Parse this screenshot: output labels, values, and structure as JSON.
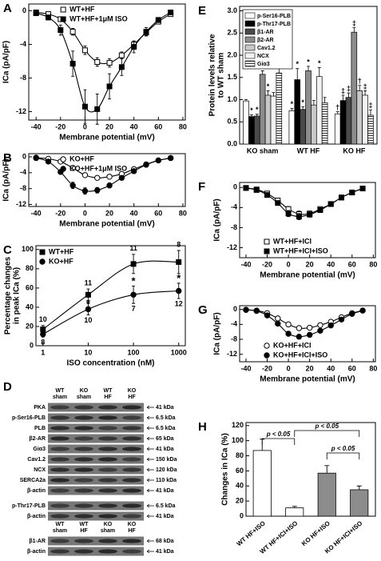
{
  "chart_data": [
    {
      "panel": "A",
      "type": "line",
      "xlabel": "Membrane potential (mV)",
      "ylabel": "ICa (pA/pF)",
      "x": [
        -40,
        -30,
        -20,
        -10,
        0,
        10,
        20,
        30,
        40,
        50,
        60,
        70
      ],
      "xlim": [
        -46,
        82
      ],
      "xticks": [
        -40,
        -20,
        0,
        20,
        40,
        60,
        80
      ],
      "ylim": [
        -13,
        0.8
      ],
      "yticks": [
        0,
        -4,
        -8,
        -12
      ],
      "legend": "upper center",
      "series": [
        {
          "name": "WT+HF",
          "marker": "square",
          "filled": false,
          "color": "#000000",
          "values": [
            -0.2,
            -0.4,
            -1.0,
            -2.5,
            -4.7,
            -6.1,
            -6.2,
            -5.3,
            -4.0,
            -2.6,
            -1.3,
            -0.4
          ],
          "errors": [
            0.1,
            0.1,
            0.2,
            0.4,
            0.5,
            0.5,
            0.5,
            0.4,
            0.4,
            0.3,
            0.2,
            0.1
          ]
        },
        {
          "name": "WT+HF+1μM ISO",
          "marker": "square",
          "filled": true,
          "color": "#000000",
          "values": [
            -0.3,
            -0.8,
            -2.3,
            -6.3,
            -11.4,
            -11.7,
            -9.0,
            -6.7,
            -4.3,
            -2.5,
            -1.1,
            -0.2
          ],
          "errors": [
            0.1,
            0.3,
            0.6,
            1.5,
            2.0,
            1.8,
            1.5,
            1.0,
            0.7,
            0.5,
            0.3,
            0.1
          ]
        }
      ]
    },
    {
      "panel": "B",
      "type": "line",
      "xlabel": "Membrane potential (mV)",
      "ylabel": "ICa (pA/pF)",
      "x": [
        -40,
        -30,
        -20,
        -10,
        0,
        10,
        20,
        30,
        40,
        50,
        60,
        70
      ],
      "xlim": [
        -46,
        82
      ],
      "xticks": [
        -40,
        -20,
        0,
        20,
        40,
        60,
        80
      ],
      "ylim": [
        -12.5,
        0.8
      ],
      "yticks": [
        0,
        -4,
        -8,
        -12
      ],
      "legend": "upper center",
      "series": [
        {
          "name": "KO+HF",
          "marker": "circle",
          "filled": false,
          "color": "#000000",
          "values": [
            -0.2,
            -0.5,
            -1.2,
            -2.8,
            -4.6,
            -5.3,
            -5.0,
            -4.3,
            -3.1,
            -1.9,
            -0.9,
            -0.3
          ],
          "errors": [
            0.1,
            0.1,
            0.2,
            0.3,
            0.4,
            0.4,
            0.4,
            0.3,
            0.3,
            0.2,
            0.2,
            0.1
          ]
        },
        {
          "name": "KO+HF+1μM ISO",
          "marker": "circle",
          "filled": true,
          "color": "#000000",
          "values": [
            -0.3,
            -1.2,
            -3.8,
            -7.2,
            -8.6,
            -8.4,
            -7.2,
            -5.3,
            -3.6,
            -2.0,
            -0.9,
            -0.3
          ],
          "errors": [
            0.1,
            0.2,
            0.5,
            0.8,
            0.8,
            0.7,
            0.6,
            0.5,
            0.4,
            0.3,
            0.2,
            0.1
          ]
        }
      ]
    },
    {
      "panel": "C",
      "type": "line",
      "xscale": "log",
      "xlabel": "ISO concentration (nM)",
      "ylabel": [
        "Percentage changes",
        "in peak ICa (%)"
      ],
      "x": [
        1,
        10,
        100,
        1000
      ],
      "xlim": [
        0.7,
        1400
      ],
      "xticks": [
        1,
        10,
        100,
        1000
      ],
      "ylim": [
        0,
        104
      ],
      "yticks": [
        0,
        20,
        40,
        60,
        80,
        100
      ],
      "legend": "upper left",
      "significance": [
        null,
        "*",
        "*",
        "*"
      ],
      "series": [
        {
          "name": "WT+HF",
          "marker": "square",
          "filled": true,
          "color": "#000000",
          "values": [
            17,
            53,
            85,
            87
          ],
          "errors": [
            4,
            6,
            10,
            12
          ],
          "n_labels": [
            "10",
            "11",
            "11",
            "8"
          ],
          "n_label_position": "above"
        },
        {
          "name": "KO+HF",
          "marker": "circle",
          "filled": true,
          "color": "#000000",
          "values": [
            12,
            38,
            53,
            57
          ],
          "errors": [
            3,
            6,
            9,
            8
          ],
          "n_labels": [
            "8",
            "10",
            "7",
            "12"
          ],
          "n_label_position": "below"
        }
      ]
    },
    {
      "panel": "E",
      "type": "bar",
      "ylabel": [
        "Protein levels relative",
        "to WT sham"
      ],
      "categories": [
        "KO sham",
        "WT HF",
        "KO HF"
      ],
      "ylim": [
        0,
        3.1
      ],
      "yticks": [
        {
          "value": 0,
          "label": "0.0"
        },
        {
          "value": 0.5,
          "label": "0.5"
        },
        {
          "value": 1,
          "label": "1.0"
        },
        {
          "value": 1.5,
          "label": "1.5"
        },
        {
          "value": 2,
          "label": "2.0"
        },
        {
          "value": 2.5,
          "label": "2.5"
        },
        {
          "value": 3,
          "label": "3.0"
        }
      ],
      "legend": "upper left",
      "series": [
        {
          "name": "p-Ser16-PLB",
          "color": "#ffffff",
          "values": [
            0.97,
            0.75,
            0.68
          ],
          "errors": [
            0.03,
            0.05,
            0.05
          ],
          "marks": [
            null,
            "*",
            "†"
          ]
        },
        {
          "name": "p-Thr17-PLB",
          "color": "#000000",
          "values": [
            0.62,
            1.45,
            0.98
          ],
          "errors": [
            0.04,
            0.25,
            0.12
          ],
          "marks": [
            "*",
            "*",
            "‡"
          ]
        },
        {
          "name": "β1-AR",
          "color": "#4a4a4a",
          "values": [
            0.63,
            0.78,
            1.05
          ],
          "errors": [
            0.04,
            0.06,
            0.1
          ],
          "marks": [
            "*",
            "*",
            "‡"
          ]
        },
        {
          "name": "β2-AR",
          "color": "#8c8c8c",
          "values": [
            1.57,
            1.65,
            2.52
          ],
          "errors": [
            0.08,
            0.1,
            0.1
          ],
          "marks": [
            "*",
            "*",
            "‡"
          ]
        },
        {
          "name": "Cav1.2",
          "color": "#c8c8c8",
          "values": [
            1.1,
            0.88,
            1.2
          ],
          "errors": [
            0.1,
            0.1,
            0.12
          ],
          "marks": [
            "*",
            null,
            "†"
          ]
        },
        {
          "name": "NCX",
          "color": "#f2f2f2",
          "values": [
            1.08,
            1.52,
            1.1
          ],
          "errors": [
            0.08,
            0.2,
            0.1
          ],
          "marks": [
            null,
            "*",
            "‡"
          ]
        },
        {
          "name": "Giα3",
          "color": "#ffffff",
          "hatch": true,
          "values": [
            1.6,
            0.93,
            0.65
          ],
          "errors": [
            0.12,
            0.12,
            0.12
          ],
          "marks": [
            "*",
            null,
            "‡"
          ]
        }
      ]
    },
    {
      "panel": "F",
      "type": "line",
      "xlabel": "Membrane potential (mV)",
      "ylabel": "ICa (pA/pF)",
      "x": [
        -40,
        -30,
        -20,
        -10,
        0,
        10,
        20,
        30,
        40,
        50,
        60,
        70
      ],
      "xlim": [
        -46,
        82
      ],
      "xticks": [
        -40,
        -20,
        0,
        20,
        40,
        60,
        80
      ],
      "ylim": [
        -14,
        1
      ],
      "yticks": [
        0,
        -4,
        -8,
        -12
      ],
      "legend": "lower right",
      "series": [
        {
          "name": "WT+HF+ICI",
          "marker": "square",
          "filled": false,
          "color": "#000000",
          "values": [
            -0.1,
            -0.4,
            -1.2,
            -2.6,
            -4.3,
            -5.3,
            -5.2,
            -4.3,
            -3.3,
            -2.0,
            -1.0,
            -0.2
          ],
          "errors": [
            0.1,
            0.1,
            0.2,
            0.3,
            0.5,
            0.6,
            0.5,
            0.4,
            0.3,
            0.3,
            0.2,
            0.1
          ]
        },
        {
          "name": "WT+HF+ICI+ISO",
          "marker": "square",
          "filled": true,
          "color": "#000000",
          "values": [
            -0.1,
            -0.5,
            -1.5,
            -3.1,
            -5.2,
            -5.8,
            -5.4,
            -4.5,
            -3.3,
            -2.0,
            -1.0,
            -0.2
          ],
          "errors": [
            0.1,
            0.1,
            0.2,
            0.4,
            0.6,
            0.6,
            0.5,
            0.4,
            0.3,
            0.3,
            0.2,
            0.1
          ]
        }
      ]
    },
    {
      "panel": "G",
      "type": "line",
      "xlabel": "Membrane potential (mV)",
      "ylabel": "ICa (pA/pF)",
      "x": [
        -40,
        -30,
        -20,
        -10,
        0,
        10,
        20,
        30,
        40,
        50,
        60,
        70
      ],
      "xlim": [
        -46,
        82
      ],
      "xticks": [
        -40,
        -20,
        0,
        20,
        40,
        60,
        80
      ],
      "ylim": [
        -14,
        1
      ],
      "yticks": [
        0,
        -4,
        -8,
        -12
      ],
      "legend": "lower right",
      "series": [
        {
          "name": "KO+HF+ICI",
          "marker": "circle",
          "filled": false,
          "color": "#000000",
          "values": [
            -0.1,
            -0.3,
            -1.0,
            -2.4,
            -4.0,
            -5.0,
            -4.9,
            -4.2,
            -3.3,
            -2.1,
            -1.0,
            -0.3
          ],
          "errors": [
            0.1,
            0.1,
            0.2,
            0.3,
            0.4,
            0.4,
            0.4,
            0.3,
            0.3,
            0.2,
            0.2,
            0.1
          ]
        },
        {
          "name": "KO+HF+ICI+ISO",
          "marker": "circle",
          "filled": true,
          "color": "#000000",
          "values": [
            -0.1,
            -0.4,
            -1.6,
            -3.8,
            -6.5,
            -7.3,
            -6.8,
            -5.7,
            -4.3,
            -2.7,
            -1.2,
            -0.3
          ],
          "errors": [
            0.1,
            0.1,
            0.3,
            0.5,
            0.6,
            0.6,
            0.5,
            0.4,
            0.3,
            0.3,
            0.2,
            0.1
          ]
        }
      ]
    },
    {
      "panel": "H",
      "type": "bar",
      "ylabel": "Changes in ICa (%)",
      "categories": [
        "WT HF+ISO",
        "WT HF+ICI+ISO",
        "KO HF+ISO",
        "KO HF+ICI+ISO"
      ],
      "values": [
        87,
        11,
        57,
        35
      ],
      "errors": [
        15,
        2,
        10,
        5
      ],
      "colors": [
        "#ffffff",
        "#ffffff",
        "#8c8c8c",
        "#8c8c8c"
      ],
      "ylim": [
        0,
        124
      ],
      "yticks": [
        0,
        20,
        40,
        60,
        80,
        100,
        120
      ],
      "annotations": [
        "p < 0.05",
        "p < 0.05",
        "p < 0.05"
      ]
    }
  ],
  "blot": {
    "panel": "D",
    "sections": [
      {
        "lanes": [
          [
            "WT",
            "sham"
          ],
          [
            "KO",
            "sham"
          ],
          [
            "WT",
            "HF"
          ],
          [
            "KO",
            "HF"
          ]
        ],
        "rows": [
          {
            "label": "PKA",
            "size": "41 kDa"
          },
          {
            "label": "p-Ser16-PLB",
            "size": "6.5 kDa"
          },
          {
            "label": "PLB",
            "size": "6.5 kDa"
          },
          {
            "label": "β2-AR",
            "size": "65 kDa"
          },
          {
            "label": "Giα3",
            "size": "41 kDa"
          },
          {
            "label": "Cav1.2",
            "size": "150 kDa"
          },
          {
            "label": "NCX",
            "size": "120 kDa"
          },
          {
            "label": "SERCA2a",
            "size": "110 kDa"
          },
          {
            "label": "β-actin",
            "size": "41 kDa"
          }
        ]
      },
      {
        "rows": [
          {
            "label": "p-Thr17-PLB",
            "size": "6.5 kDa"
          },
          {
            "label": "β-actin",
            "size": "41 kDa"
          }
        ]
      },
      {
        "lanes": [
          [
            "WT",
            "sham"
          ],
          [
            "WT",
            "HF"
          ],
          [
            "KO",
            "sham"
          ],
          [
            "KO",
            "HF"
          ]
        ],
        "rows": [
          {
            "label": "β1-AR",
            "size": "68 kDa"
          },
          {
            "label": "β-actin",
            "size": "41 kDa"
          }
        ]
      }
    ]
  }
}
